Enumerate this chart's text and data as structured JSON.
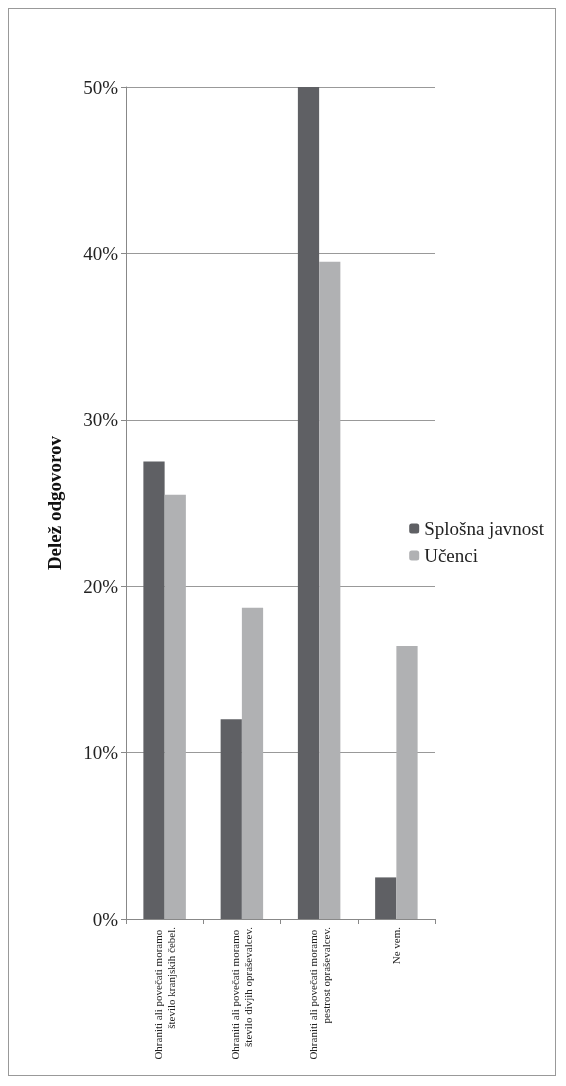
{
  "chart_data": {
    "type": "bar",
    "ylabel": "Delež odgovorov",
    "categories": [
      "Ohraniti ali povečati moramo število kranjskih čebel.",
      "Ohraniti ali povečati moramo število divjih opraševalcev.",
      "Ohraniti ali povečati moramo pestrost opraševalcev.",
      "Ne vem."
    ],
    "series": [
      {
        "name": "Splošna javnost",
        "color": "#5f6064",
        "values": [
          27.5,
          12.0,
          50.0,
          2.5
        ]
      },
      {
        "name": "Učenci",
        "color": "#b0b1b3",
        "values": [
          25.5,
          18.7,
          39.5,
          16.4
        ]
      }
    ],
    "ylim": [
      0,
      50
    ],
    "yticks": [
      {
        "value": 0,
        "label": "0%"
      },
      {
        "value": 10,
        "label": "10%"
      },
      {
        "value": 20,
        "label": "20%"
      },
      {
        "value": 30,
        "label": "30%"
      },
      {
        "value": 40,
        "label": "40%"
      },
      {
        "value": 50,
        "label": "50%"
      }
    ],
    "grid": "y",
    "legend": "right"
  }
}
